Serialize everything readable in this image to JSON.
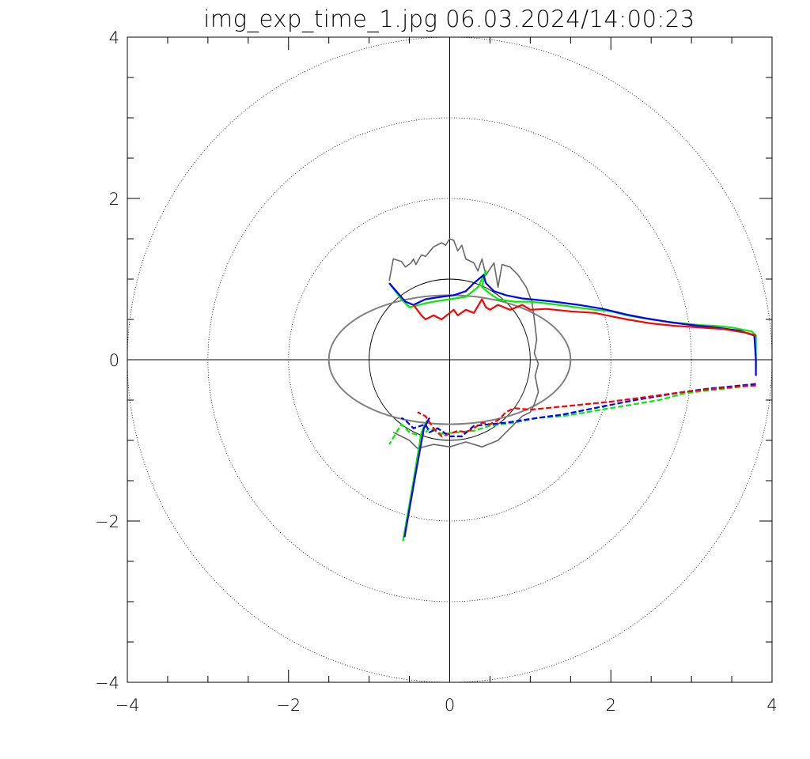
{
  "chart_data": {
    "type": "line",
    "title": "img_exp_time_1.jpg 06.03.2024/14:00:23",
    "xlabel": "",
    "ylabel": "",
    "xlim": [
      -4,
      4
    ],
    "ylim": [
      -4,
      4
    ],
    "x_ticks": [
      -4,
      -2,
      0,
      2,
      4
    ],
    "y_ticks": [
      -4,
      -2,
      0,
      2,
      4
    ],
    "x_tick_labels": [
      "−4",
      "−2",
      "0",
      "2",
      "4"
    ],
    "y_tick_labels": [
      "−4",
      "−2",
      "0",
      "2",
      "4"
    ],
    "minor_tick_step": 0.5,
    "grid_circles": [
      {
        "r": 1,
        "style": "solid"
      },
      {
        "r": 2,
        "style": "dotted"
      },
      {
        "r": 3,
        "style": "dotted"
      },
      {
        "r": 4,
        "style": "dotted"
      }
    ],
    "axis_lines": {
      "x0": true,
      "y0": true
    },
    "ellipse": {
      "cx": 0,
      "cy": 0,
      "rx": 1.5,
      "ry": 0.8,
      "color": "#808080"
    },
    "series": [
      {
        "name": "gray-outline",
        "color": "#666666",
        "dash": "solid",
        "points": [
          [
            -0.75,
            0.98
          ],
          [
            -0.7,
            1.25
          ],
          [
            -0.6,
            1.22
          ],
          [
            -0.55,
            1.15
          ],
          [
            -0.48,
            1.2
          ],
          [
            -0.45,
            1.25
          ],
          [
            -0.42,
            1.18
          ],
          [
            -0.35,
            1.3
          ],
          [
            -0.3,
            1.28
          ],
          [
            -0.2,
            1.4
          ],
          [
            -0.1,
            1.45
          ],
          [
            -0.05,
            1.42
          ],
          [
            0.0,
            1.5
          ],
          [
            0.05,
            1.48
          ],
          [
            0.1,
            1.35
          ],
          [
            0.15,
            1.42
          ],
          [
            0.2,
            1.25
          ],
          [
            0.3,
            1.2
          ],
          [
            0.35,
            1.1
          ],
          [
            0.4,
            1.25
          ],
          [
            0.45,
            1.05
          ],
          [
            0.55,
            1.2
          ],
          [
            0.6,
            0.9
          ],
          [
            0.65,
            1.18
          ],
          [
            0.75,
            1.15
          ],
          [
            0.85,
            1.05
          ],
          [
            0.95,
            0.9
          ],
          [
            1.02,
            0.72
          ],
          [
            1.05,
            0.5
          ],
          [
            1.08,
            0.25
          ],
          [
            1.05,
            0.08
          ],
          [
            1.1,
            -0.05
          ],
          [
            1.06,
            -0.2
          ],
          [
            1.1,
            -0.4
          ],
          [
            1.05,
            -0.55
          ],
          [
            1.0,
            -0.65
          ],
          [
            0.9,
            -0.7
          ],
          [
            0.75,
            -0.85
          ],
          [
            0.6,
            -1.0
          ],
          [
            0.4,
            -1.08
          ],
          [
            0.2,
            -1.02
          ],
          [
            0.0,
            -1.08
          ],
          [
            -0.2,
            -1.05
          ],
          [
            -0.4,
            -1.1
          ],
          [
            -0.5,
            -1.0
          ],
          [
            -0.6,
            -0.95
          ],
          [
            -0.7,
            -0.9
          ]
        ]
      },
      {
        "name": "green-upper",
        "color": "#00ee00",
        "dash": "solid",
        "points": [
          [
            -0.75,
            0.95
          ],
          [
            -0.6,
            0.75
          ],
          [
            -0.5,
            0.65
          ],
          [
            -0.3,
            0.7
          ],
          [
            -0.2,
            0.72
          ],
          [
            0.0,
            0.75
          ],
          [
            0.2,
            0.78
          ],
          [
            0.35,
            0.9
          ],
          [
            0.45,
            1.1
          ],
          [
            0.4,
            0.9
          ],
          [
            0.5,
            0.82
          ],
          [
            0.6,
            0.75
          ],
          [
            0.8,
            0.72
          ],
          [
            1.0,
            0.72
          ],
          [
            1.2,
            0.7
          ],
          [
            1.5,
            0.66
          ],
          [
            1.8,
            0.62
          ],
          [
            2.0,
            0.6
          ],
          [
            2.2,
            0.55
          ],
          [
            2.5,
            0.5
          ],
          [
            2.8,
            0.46
          ],
          [
            3.1,
            0.43
          ],
          [
            3.3,
            0.42
          ],
          [
            3.5,
            0.4
          ],
          [
            3.75,
            0.35
          ],
          [
            3.8,
            0.3
          ],
          [
            3.8,
            0.1
          ],
          [
            3.8,
            -0.1
          ]
        ]
      },
      {
        "name": "blue-upper",
        "color": "#0000ff",
        "dash": "solid",
        "points": [
          [
            -0.75,
            0.95
          ],
          [
            -0.55,
            0.72
          ],
          [
            -0.45,
            0.68
          ],
          [
            -0.3,
            0.75
          ],
          [
            -0.1,
            0.78
          ],
          [
            0.05,
            0.8
          ],
          [
            0.2,
            0.85
          ],
          [
            0.3,
            0.95
          ],
          [
            0.42,
            1.05
          ],
          [
            0.45,
            0.95
          ],
          [
            0.55,
            0.85
          ],
          [
            0.7,
            0.8
          ],
          [
            0.9,
            0.76
          ],
          [
            1.1,
            0.74
          ],
          [
            1.3,
            0.72
          ],
          [
            1.6,
            0.68
          ],
          [
            1.9,
            0.63
          ],
          [
            2.2,
            0.56
          ],
          [
            2.4,
            0.52
          ],
          [
            2.7,
            0.47
          ],
          [
            3.0,
            0.43
          ],
          [
            3.3,
            0.4
          ],
          [
            3.6,
            0.36
          ],
          [
            3.78,
            0.3
          ],
          [
            3.8,
            0.0
          ],
          [
            3.8,
            -0.2
          ]
        ]
      },
      {
        "name": "red-upper",
        "color": "#ff0000",
        "dash": "solid",
        "points": [
          [
            -0.45,
            0.68
          ],
          [
            -0.35,
            0.55
          ],
          [
            -0.3,
            0.5
          ],
          [
            -0.2,
            0.55
          ],
          [
            -0.1,
            0.5
          ],
          [
            0.0,
            0.58
          ],
          [
            0.05,
            0.62
          ],
          [
            0.1,
            0.55
          ],
          [
            0.2,
            0.62
          ],
          [
            0.3,
            0.58
          ],
          [
            0.4,
            0.75
          ],
          [
            0.45,
            0.65
          ],
          [
            0.5,
            0.62
          ],
          [
            0.6,
            0.68
          ],
          [
            0.75,
            0.62
          ],
          [
            0.9,
            0.68
          ],
          [
            1.0,
            0.62
          ],
          [
            1.2,
            0.63
          ],
          [
            1.5,
            0.6
          ],
          [
            1.8,
            0.58
          ],
          [
            2.0,
            0.54
          ],
          [
            2.2,
            0.5
          ],
          [
            2.5,
            0.45
          ],
          [
            2.8,
            0.42
          ],
          [
            3.1,
            0.4
          ],
          [
            3.4,
            0.38
          ],
          [
            3.7,
            0.33
          ],
          [
            3.8,
            0.3
          ]
        ]
      },
      {
        "name": "green-lower",
        "color": "#00ee00",
        "dash": "dashed",
        "points": [
          [
            3.8,
            -0.3
          ],
          [
            3.5,
            -0.35
          ],
          [
            3.2,
            -0.38
          ],
          [
            2.9,
            -0.42
          ],
          [
            2.6,
            -0.5
          ],
          [
            2.3,
            -0.55
          ],
          [
            2.0,
            -0.6
          ],
          [
            1.7,
            -0.65
          ],
          [
            1.4,
            -0.7
          ],
          [
            1.1,
            -0.72
          ],
          [
            0.8,
            -0.78
          ],
          [
            0.5,
            -0.82
          ],
          [
            0.3,
            -0.88
          ],
          [
            0.1,
            -0.9
          ],
          [
            -0.1,
            -0.92
          ],
          [
            -0.25,
            -0.85
          ],
          [
            -0.35,
            -0.95
          ],
          [
            -0.5,
            -0.9
          ],
          [
            -0.6,
            -0.8
          ],
          [
            -0.75,
            -1.05
          ]
        ]
      },
      {
        "name": "blue-lower",
        "color": "#0000ff",
        "dash": "dashed",
        "points": [
          [
            3.8,
            -0.3
          ],
          [
            3.5,
            -0.33
          ],
          [
            3.2,
            -0.36
          ],
          [
            2.9,
            -0.4
          ],
          [
            2.6,
            -0.45
          ],
          [
            2.3,
            -0.5
          ],
          [
            2.0,
            -0.56
          ],
          [
            1.7,
            -0.62
          ],
          [
            1.4,
            -0.68
          ],
          [
            1.1,
            -0.72
          ],
          [
            0.9,
            -0.75
          ],
          [
            0.7,
            -0.78
          ],
          [
            0.5,
            -0.8
          ],
          [
            0.3,
            -0.82
          ],
          [
            0.15,
            -0.95
          ],
          [
            0.0,
            -0.95
          ],
          [
            -0.15,
            -0.85
          ],
          [
            -0.25,
            -0.9
          ],
          [
            -0.3,
            -0.8
          ],
          [
            -0.45,
            -0.85
          ],
          [
            -0.55,
            -0.75
          ],
          [
            -0.6,
            -0.72
          ]
        ]
      },
      {
        "name": "red-lower",
        "color": "#ff0000",
        "dash": "dashed",
        "points": [
          [
            3.8,
            -0.32
          ],
          [
            3.5,
            -0.34
          ],
          [
            3.2,
            -0.37
          ],
          [
            2.9,
            -0.4
          ],
          [
            2.6,
            -0.44
          ],
          [
            2.3,
            -0.48
          ],
          [
            2.0,
            -0.52
          ],
          [
            1.7,
            -0.55
          ],
          [
            1.4,
            -0.58
          ],
          [
            1.2,
            -0.6
          ],
          [
            1.0,
            -0.62
          ],
          [
            0.8,
            -0.6
          ],
          [
            0.7,
            -0.65
          ],
          [
            0.6,
            -0.75
          ],
          [
            0.5,
            -0.8
          ],
          [
            0.4,
            -0.78
          ],
          [
            0.3,
            -0.85
          ],
          [
            0.2,
            -0.9
          ],
          [
            0.1,
            -0.88
          ],
          [
            0.0,
            -0.92
          ],
          [
            -0.1,
            -0.95
          ],
          [
            -0.2,
            -0.85
          ],
          [
            -0.3,
            -0.7
          ],
          [
            -0.4,
            -0.65
          ]
        ]
      },
      {
        "name": "green-spike",
        "color": "#00ee00",
        "dash": "solid",
        "points": [
          [
            -0.58,
            -2.25
          ],
          [
            -0.45,
            -1.5
          ],
          [
            -0.35,
            -0.9
          ],
          [
            -0.28,
            -0.75
          ]
        ]
      },
      {
        "name": "blue-spike",
        "color": "#0000ff",
        "dash": "solid",
        "points": [
          [
            -0.56,
            -2.2
          ],
          [
            -0.42,
            -1.4
          ],
          [
            -0.32,
            -0.85
          ],
          [
            -0.25,
            -0.72
          ]
        ]
      }
    ]
  }
}
